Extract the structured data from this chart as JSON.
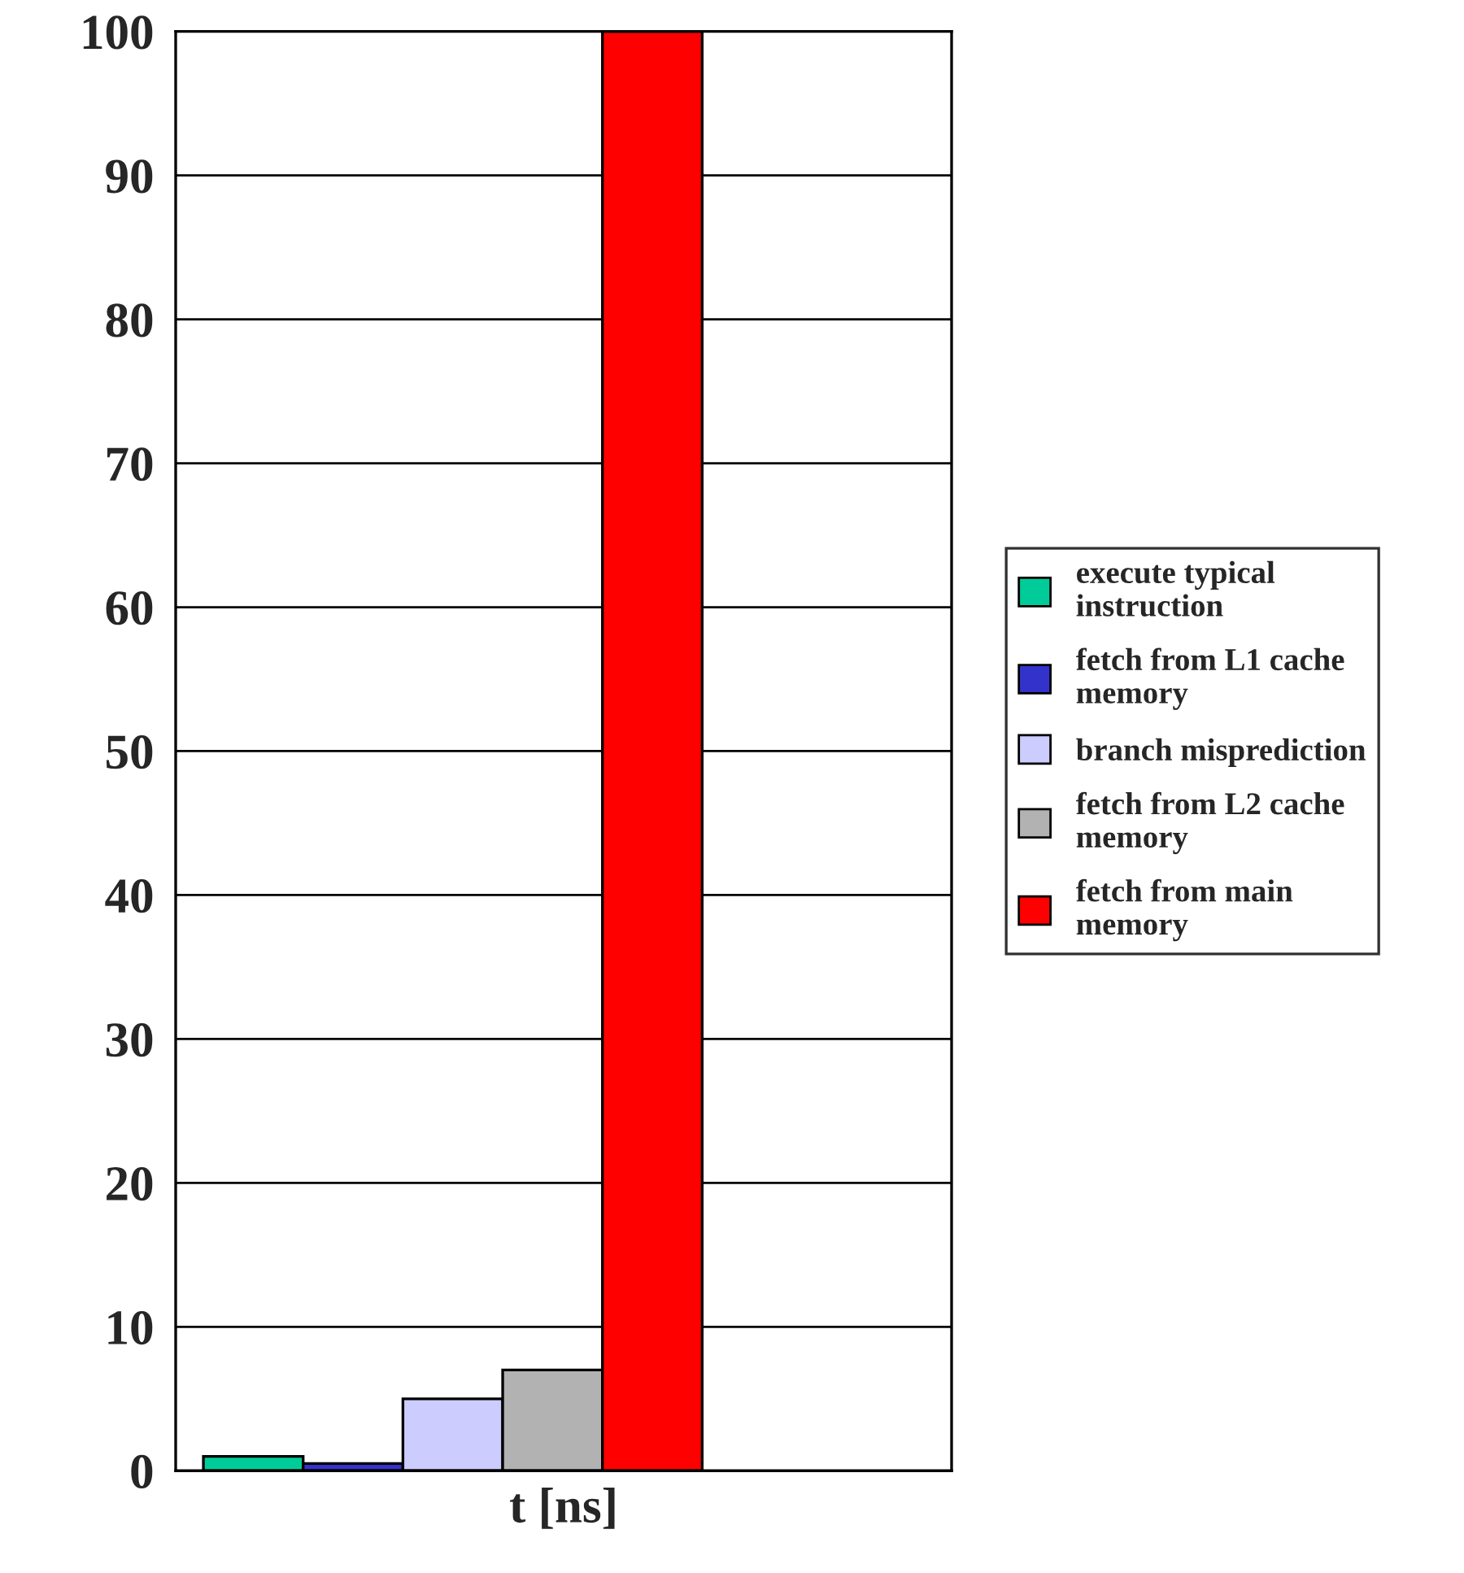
{
  "chart_data": {
    "type": "bar",
    "xlabel": "t [ns]",
    "categories": [
      null
    ],
    "series": [
      {
        "name": "execute typical instruction",
        "color": "#00cc99",
        "values": [
          1
        ]
      },
      {
        "name": "fetch from L1 cache memory",
        "color": "#3333cc",
        "values": [
          0.5
        ]
      },
      {
        "name": "branch misprediction",
        "color": "#ccccff",
        "values": [
          5
        ]
      },
      {
        "name": "fetch from L2 cache memory",
        "color": "#b2b2b2",
        "values": [
          7
        ]
      },
      {
        "name": "fetch from main memory",
        "color": "#ff0000",
        "values": [
          100
        ]
      }
    ],
    "ylim": [
      0,
      100
    ],
    "yticks": [
      0,
      10,
      20,
      30,
      40,
      50,
      60,
      70,
      80,
      90,
      100
    ],
    "grid": "y",
    "legend": "right"
  }
}
